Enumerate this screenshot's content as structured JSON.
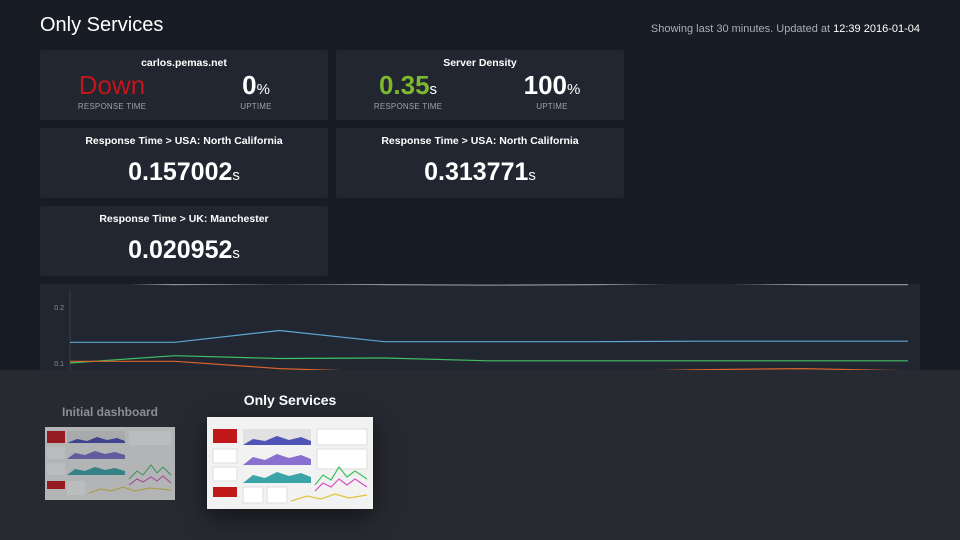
{
  "header": {
    "title": "Only Services",
    "status_prefix": "Showing last 30 minutes. Updated at ",
    "status_time": "12:39 2016-01-04"
  },
  "services": [
    {
      "name": "carlos.pemas.net",
      "response": {
        "value": "Down",
        "unit": "",
        "label": "RESPONSE TIME",
        "color": "#c0171a"
      },
      "uptime": {
        "value": "0",
        "unit": "%",
        "label": "UPTIME",
        "color": "#ffffff"
      }
    },
    {
      "name": "Server Density",
      "response": {
        "value": "0.35",
        "unit": "s",
        "label": "RESPONSE TIME",
        "color": "#7cb82f"
      },
      "uptime": {
        "value": "100",
        "unit": "%",
        "label": "UPTIME",
        "color": "#ffffff"
      }
    }
  ],
  "response_panels": [
    {
      "title": "Response Time > USA: North California",
      "value": "0.157002",
      "unit": "s"
    },
    {
      "title": "Response Time > USA: North California",
      "value": "0.313771",
      "unit": "s"
    },
    {
      "title": "Response Time > UK: Manchester",
      "value": "0.020952",
      "unit": "s"
    }
  ],
  "chart_data": {
    "type": "line",
    "title": "",
    "xlabel": "",
    "ylabel": "",
    "y_ticks": [
      "0.2",
      "0.1"
    ],
    "ylim": [
      0.08,
      0.25
    ],
    "grid": false,
    "x": [
      0,
      1,
      2,
      3,
      4,
      5,
      6,
      7,
      8
    ],
    "series": [
      {
        "color": "#8a8e96",
        "values": [
          0.245,
          0.24,
          0.242,
          0.24,
          0.239,
          0.24,
          0.243,
          0.24,
          0.24
        ]
      },
      {
        "color": "#5da7d3",
        "values": [
          0.137,
          0.137,
          0.158,
          0.138,
          0.138,
          0.138,
          0.139,
          0.139,
          0.139
        ]
      },
      {
        "color": "#3fc061",
        "values": [
          0.1,
          0.113,
          0.108,
          0.109,
          0.104,
          0.104,
          0.104,
          0.104,
          0.104
        ]
      },
      {
        "color": "#d9642c",
        "values": [
          0.103,
          0.103,
          0.09,
          0.084,
          0.084,
          0.084,
          0.088,
          0.09,
          0.086
        ]
      }
    ]
  },
  "dashboards": [
    {
      "label": "Initial dashboard",
      "selected": false
    },
    {
      "label": "Only Services",
      "selected": true
    }
  ],
  "colors": {
    "background": "#181c24",
    "panel": "#222630",
    "overlay": "#272a31",
    "down": "#c0171a",
    "ok": "#7cb82f"
  }
}
